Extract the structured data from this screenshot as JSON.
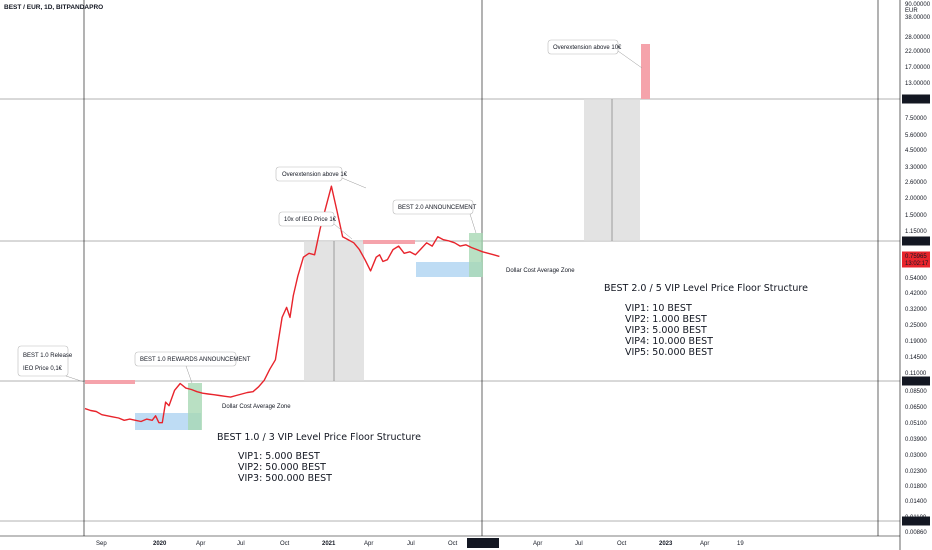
{
  "header": {
    "title": "BEST / EUR, 1D, BITPANDAPRO"
  },
  "colors": {
    "price_line": "#e8242c",
    "highlight_red": "#f5a3ab",
    "highlight_green": "#a8d8b4",
    "highlight_blue": "#aed3f1",
    "zone_gray": "#dcdcdc",
    "grid": "#000000"
  },
  "chart_data": {
    "type": "line",
    "title": "BEST / EUR, 1D, BITPANDAPRO",
    "xlabel": "",
    "ylabel": "",
    "y_scale": "log",
    "ylim": [
      0.0086,
      90.0
    ],
    "y_unit": "EUR",
    "y_tick_labels": [
      "90.00000",
      "EUR",
      "38.00000",
      "28.00000",
      "22.00000",
      "17.00000",
      "13.00000",
      "10.00000",
      "7.50000",
      "5.60000",
      "4.50000",
      "3.30000",
      "2.60000",
      "2.00000",
      "1.50000",
      "1.15000",
      "0.90000",
      "1.00000",
      "0.75965",
      "13:02:17",
      "0.54000",
      "0.42000",
      "0.32000",
      "0.25000",
      "0.19000",
      "0.14500",
      "0.11000",
      "0.10000",
      "0.08500",
      "0.06500",
      "0.05100",
      "0.03900",
      "0.03000",
      "0.02300",
      "0.01800",
      "0.01400",
      "0.01100",
      "0.01000",
      "0.00860"
    ],
    "highlighted_levels": [
      "10.00000",
      "1.00000",
      "0.10000",
      "0.01000"
    ],
    "current_price": "0.75965",
    "countdown": "13:02:17",
    "x_tick_labels": [
      "Sep",
      "2020",
      "Apr",
      "Jul",
      "Oct",
      "2021",
      "Apr",
      "Jul",
      "Oct",
      "13 Dec '21",
      "Apr",
      "Jul",
      "Oct",
      "2023",
      "Apr",
      "19"
    ],
    "series": [
      {
        "values_x_month_index": [
          0,
          0.5,
          1,
          1.5,
          2,
          2.5,
          3,
          3.5,
          4,
          4.5,
          5,
          5.5,
          6,
          6.3,
          6.6,
          6.9,
          7.2,
          7.5,
          8,
          8.5,
          9,
          9.5,
          10,
          10.5,
          11,
          11.5,
          12,
          12.5,
          13,
          13.5,
          14,
          14.5,
          15,
          15.5,
          16,
          16.5,
          17,
          17.3,
          17.6,
          18,
          18.3,
          18.6,
          19,
          19.5,
          20,
          20.5,
          21,
          21.5,
          22,
          22.5,
          23,
          23.5,
          24,
          24.5,
          25,
          25.5,
          26,
          26.3,
          26.6,
          27,
          27.5,
          28,
          28.5,
          29,
          29.5,
          30,
          30.5,
          31,
          31.5,
          32,
          32.5,
          33,
          33.5,
          34,
          34.5,
          35,
          35.5,
          36,
          36.5,
          37
        ],
        "values_y": [
          0.063,
          0.061,
          0.06,
          0.057,
          0.056,
          0.055,
          0.054,
          0.052,
          0.053,
          0.052,
          0.051,
          0.053,
          0.052,
          0.056,
          0.05,
          0.05,
          0.07,
          0.066,
          0.085,
          0.095,
          0.088,
          0.086,
          0.083,
          0.081,
          0.08,
          0.079,
          0.078,
          0.077,
          0.076,
          0.078,
          0.08,
          0.082,
          0.083,
          0.09,
          0.1,
          0.12,
          0.14,
          0.2,
          0.28,
          0.33,
          0.28,
          0.4,
          0.55,
          0.75,
          0.8,
          0.78,
          1.2,
          1.7,
          2.4,
          1.6,
          1.05,
          1.0,
          0.95,
          0.85,
          0.72,
          0.6,
          0.75,
          0.78,
          0.7,
          0.72,
          0.85,
          0.9,
          0.8,
          0.82,
          0.78,
          0.86,
          0.95,
          0.9,
          1.05,
          1.0,
          0.98,
          0.95,
          0.9,
          0.92,
          0.88,
          0.85,
          0.82,
          0.8,
          0.78,
          0.76
        ]
      }
    ],
    "annotations": [
      "BEST 1.0 Release",
      "IEO Price 0,1€",
      "BEST 1.0 REWARDS ANNOUNCEMENT",
      "Dollar Cost Average Zone",
      "Overextension above 1€",
      "10x of IEO Price 1€",
      "BEST 2.0 ANNOUNCEMENT",
      "Dollar Cost Average Zone",
      "Overextension above 10€"
    ],
    "structure_boxes": [
      {
        "title": "BEST 1.0 / 3 VIP Level Price Floor Structure",
        "lines": [
          "VIP1: 5.000 BEST",
          "VIP2: 50.000 BEST",
          "VIP3: 500.000 BEST"
        ]
      },
      {
        "title": "BEST 2.0 / 5 VIP Level Price Floor Structure",
        "lines": [
          "VIP1: 10 BEST",
          "VIP2: 1.000 BEST",
          "VIP3: 5.000 BEST",
          "VIP4: 10.000 BEST",
          "VIP5: 50.000 BEST"
        ]
      }
    ]
  }
}
